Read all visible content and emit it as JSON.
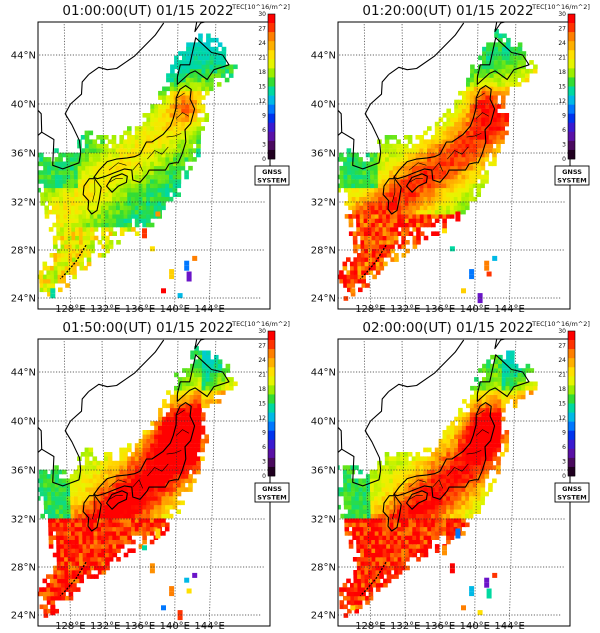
{
  "map": {
    "colorbar_title": "TEC[10^16/m^2]",
    "colorbar_ticks": [
      "30",
      "27",
      "24",
      "21",
      "18",
      "15",
      "12",
      "9",
      "6",
      "3",
      "0"
    ],
    "colorbar_colors": [
      "#ff0000",
      "#ff3300",
      "#ff7f00",
      "#ffb000",
      "#ffe000",
      "#e6f500",
      "#9cee00",
      "#33dd33",
      "#00d9a0",
      "#00b9e6",
      "#0077ff",
      "#0033ee",
      "#3a1ad0",
      "#5a10a6",
      "#4a0a5e",
      "#200020"
    ],
    "badge_line1": "GNSS",
    "badge_line2": "SYSTEM",
    "lat_labels": [
      "44°N",
      "40°N",
      "36°N",
      "32°N",
      "28°N",
      "24°N"
    ],
    "lon_labels": [
      "128°E",
      "132°E",
      "136°E",
      "140°E",
      "144°E"
    ]
  },
  "panels": [
    {
      "title": "01:00:00(UT) 01/15 2022",
      "state": 0
    },
    {
      "title": "01:20:00(UT) 01/15 2022",
      "state": 1
    },
    {
      "title": "01:50:00(UT) 01/15 2022",
      "state": 2
    },
    {
      "title": "02:00:00(UT) 01/15 2022",
      "state": 3
    }
  ]
}
